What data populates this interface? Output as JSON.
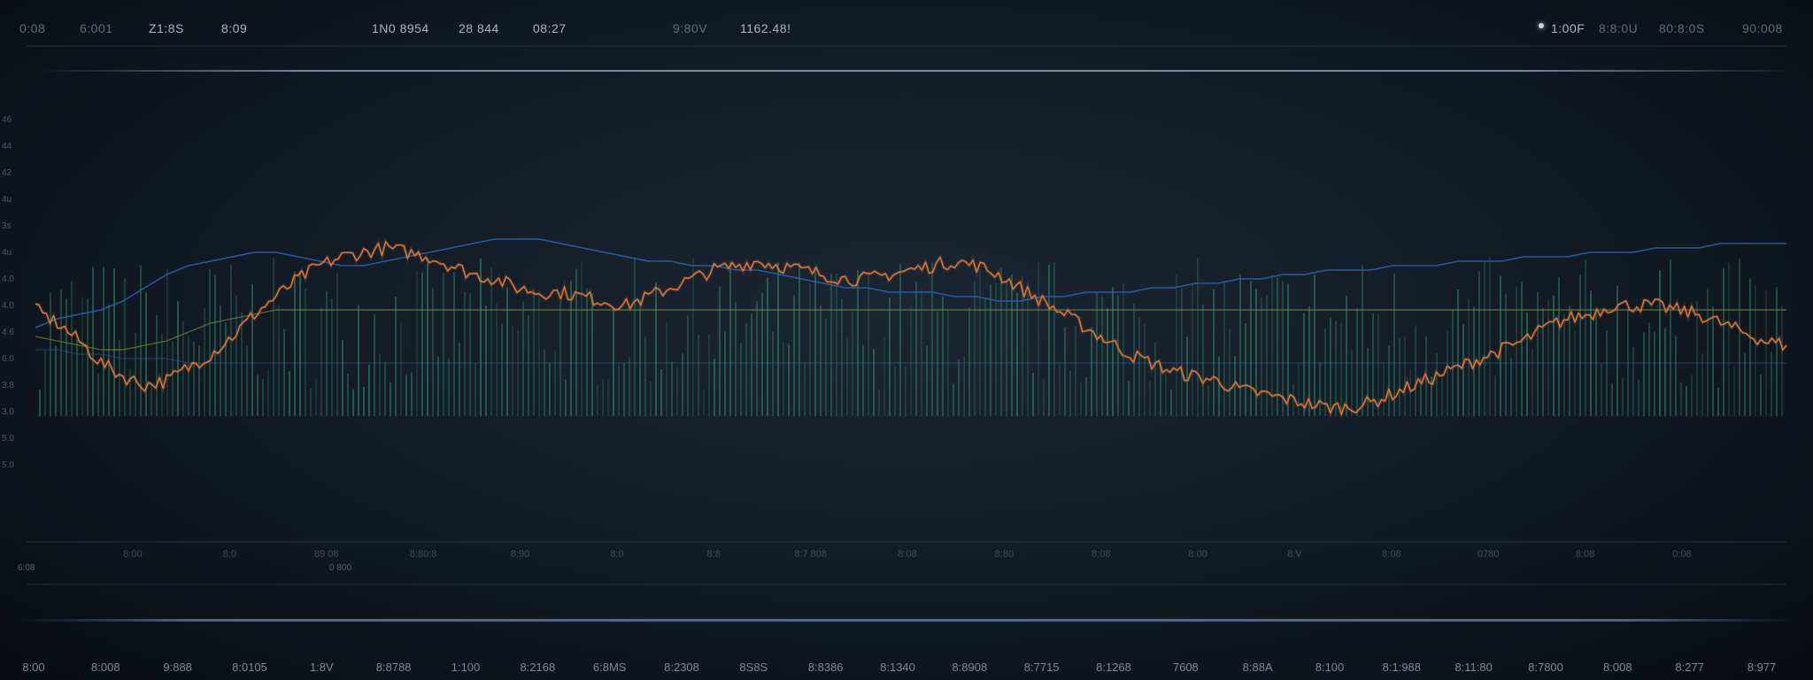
{
  "topbar": {
    "stats_left": [
      "0:08",
      "6:001",
      "Z1:8S",
      "8:09"
    ],
    "stats_mid": [
      "1N0 8954",
      "28 844",
      "08:27"
    ],
    "stats_right_mid": [
      "9:80V",
      "1162.48!"
    ],
    "stats_far_right": [
      "1:00F",
      "8:8:0U",
      "80:8:0S",
      "90:008"
    ]
  },
  "y_axis_labels": [
    "46",
    "44",
    "42",
    "4u",
    "3s",
    "4u",
    "4.0",
    "4.0",
    "4.6",
    "6.0",
    "3.8",
    "3.0",
    "5.0",
    "5.0"
  ],
  "mid_ticks": [
    "8:00",
    "8:0",
    "89 08",
    "8:80:8",
    "8:90",
    "8:0",
    "8:8",
    "8:7 808",
    "8:08",
    "8:80",
    "8:08",
    "8:00",
    "8:V",
    "8:08",
    "0780",
    "8:08",
    "0:08"
  ],
  "mini_row": [
    "6:08",
    "0 800"
  ],
  "bottom_ticks": [
    "8:00",
    "8:008",
    "9:888",
    "8:0105",
    "1:8V",
    "8:8788",
    "1:100",
    "8:2168",
    "6:8MS",
    "8:2308",
    "8S8S",
    "8:8386",
    "8:1340",
    "8:8908",
    "8:7715",
    "8:1268",
    "7608",
    "8:88A",
    "8:100",
    "8:1:988",
    "8:11:80",
    "8:7800",
    "8:008",
    "8:277",
    "8:977"
  ],
  "colors": {
    "price": "#d9773a",
    "volume": "#2f7a5e",
    "blue_line": "#2b63b8",
    "ma_green": "#6d8a3c",
    "ma_red": "#8a3d35",
    "accent_glow": "#cfe0ff"
  },
  "chart_data": {
    "type": "line",
    "title": "",
    "xlabel": "",
    "ylabel": "",
    "grid": false,
    "legend": "none",
    "x_count": 81,
    "series": [
      {
        "values": [
          50,
          47,
          43,
          38,
          35,
          33,
          34,
          37,
          40,
          44,
          49,
          53,
          57,
          60,
          62,
          63,
          64,
          63,
          62,
          60,
          58,
          57,
          55,
          54,
          54,
          53,
          52,
          51,
          53,
          55,
          57,
          59,
          60,
          61,
          60,
          59,
          58,
          57,
          57,
          58,
          59,
          60,
          61,
          60,
          58,
          55,
          52,
          49,
          46,
          43,
          40,
          38,
          36,
          35,
          34,
          32,
          31,
          30,
          29,
          28,
          28,
          29,
          31,
          33,
          35,
          37,
          39,
          41,
          43,
          46,
          48,
          49,
          51,
          51,
          51,
          50,
          49,
          47,
          45,
          43,
          42
        ]
      },
      {
        "values": [
          46,
          48,
          49,
          50,
          52,
          55,
          58,
          60,
          61,
          62,
          63,
          63,
          62,
          61,
          60,
          60,
          61,
          62,
          63,
          64,
          65,
          66,
          66,
          66,
          65,
          64,
          63,
          62,
          61,
          61,
          60,
          60,
          59,
          59,
          58,
          57,
          56,
          55,
          55,
          54,
          54,
          54,
          53,
          53,
          52,
          52,
          53,
          53,
          54,
          54,
          54,
          55,
          55,
          56,
          56,
          57,
          57,
          58,
          58,
          59,
          59,
          59,
          60,
          60,
          60,
          61,
          61,
          61,
          62,
          62,
          62,
          63,
          63,
          63,
          64,
          64,
          64,
          65,
          65,
          65,
          65
        ]
      },
      {
        "values": [
          41,
          41,
          40,
          40,
          39,
          39,
          39,
          38,
          38,
          38,
          38,
          38,
          38,
          38,
          38,
          38,
          38,
          38,
          38,
          38,
          38,
          38,
          38,
          38,
          38,
          38,
          38,
          38,
          38,
          38,
          38,
          38,
          38,
          38,
          38,
          38,
          38,
          38,
          38,
          38,
          38,
          38,
          38,
          38,
          38,
          38,
          38,
          38,
          38,
          38,
          38,
          38,
          38,
          38,
          38,
          38,
          38,
          38,
          38,
          38,
          38,
          38,
          38,
          38,
          38,
          38,
          38,
          38,
          38,
          38,
          38,
          38,
          38,
          38,
          38,
          38,
          38,
          38,
          38,
          38,
          38
        ]
      },
      {
        "values": [
          44,
          43,
          42,
          41,
          41,
          42,
          43,
          45,
          47,
          48,
          49,
          50,
          50,
          50,
          50,
          50,
          50,
          50,
          50,
          50,
          50,
          50,
          50,
          50,
          50,
          50,
          50,
          50,
          50,
          50,
          50,
          50,
          50,
          50,
          50,
          50,
          50,
          50,
          50,
          50,
          50,
          50,
          50,
          50,
          50,
          50,
          50,
          50,
          50,
          50,
          50,
          50,
          50,
          50,
          50,
          50,
          50,
          50,
          50,
          50,
          50,
          50,
          50,
          50,
          50,
          50,
          50,
          50,
          50,
          50,
          50,
          50,
          50,
          50,
          50,
          50,
          50,
          50,
          50,
          50,
          50
        ]
      }
    ],
    "x_lim": [
      0,
      80
    ],
    "ylim": [
      0,
      100
    ]
  }
}
